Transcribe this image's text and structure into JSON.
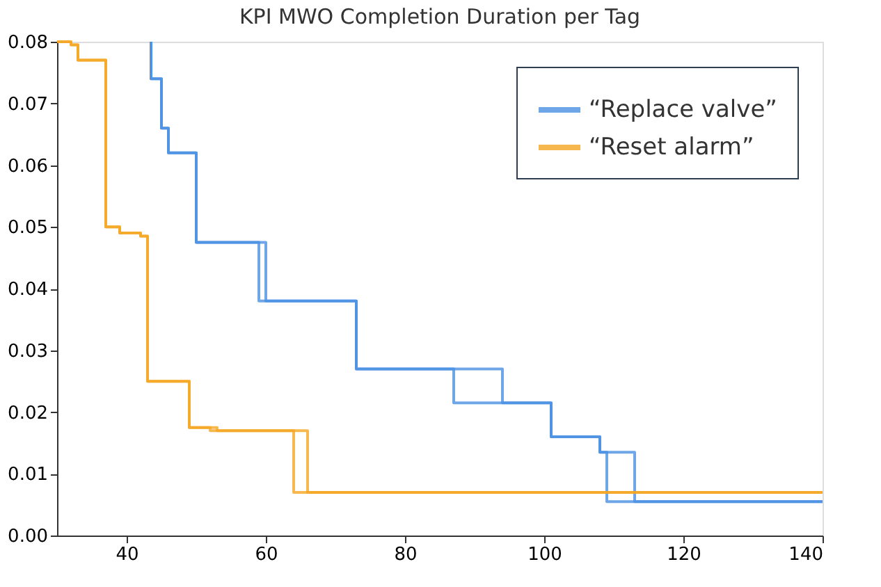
{
  "chart_data": {
    "type": "step",
    "title": "KPI MWO Completion Duration per Tag",
    "xlim": [
      30,
      140
    ],
    "xticks": [
      40,
      60,
      80,
      100,
      120,
      140
    ],
    "ylim": [
      0,
      0.08
    ],
    "yticks": [
      {
        "value": 0,
        "label": "0.00"
      },
      {
        "value": 0.01,
        "label": "0.01"
      },
      {
        "value": 0.02,
        "label": "0.02"
      },
      {
        "value": 0.03,
        "label": "0.03"
      },
      {
        "value": 0.04,
        "label": "0.04"
      },
      {
        "value": 0.05,
        "label": "0.05"
      },
      {
        "value": 0.06,
        "label": "0.06"
      },
      {
        "value": 0.07,
        "label": "0.07"
      },
      {
        "value": 0.08,
        "label": "0.08"
      }
    ],
    "grid": false,
    "legend": "top right",
    "line_style": "solid",
    "marker": "none",
    "series": [
      {
        "name": "“Replace valve”",
        "color": "#4a90e2",
        "x": [
          43.5,
          43.5,
          45,
          46,
          50,
          60,
          73,
          94,
          101,
          108,
          113,
          140
        ],
        "values": [
          0.08,
          0.074,
          0.066,
          0.062,
          0.0475,
          0.038,
          0.027,
          0.0215,
          0.016,
          0.0135,
          0.0055,
          0.0055
        ]
      },
      {
        "color": "#4a90e2",
        "x": [
          43.5,
          43.5,
          45,
          46,
          50,
          59,
          73,
          87,
          101,
          108,
          109,
          140
        ],
        "values": [
          0.08,
          0.074,
          0.066,
          0.062,
          0.0475,
          0.038,
          0.027,
          0.0215,
          0.016,
          0.0135,
          0.0055,
          0.0055
        ]
      },
      {
        "name": "“Reset alarm”",
        "color": "#f5a623",
        "x": [
          30,
          32,
          33,
          37,
          39,
          42,
          43,
          49,
          53,
          66,
          140
        ],
        "values": [
          0.08,
          0.0795,
          0.077,
          0.05,
          0.049,
          0.0485,
          0.025,
          0.0175,
          0.017,
          0.007,
          0.007
        ]
      },
      {
        "color": "#f5a623",
        "x": [
          30,
          32,
          33,
          37,
          39,
          42,
          43,
          49,
          52,
          64,
          140
        ],
        "values": [
          0.08,
          0.0795,
          0.077,
          0.05,
          0.049,
          0.0485,
          0.025,
          0.0175,
          0.017,
          0.007,
          0.007
        ]
      }
    ]
  }
}
